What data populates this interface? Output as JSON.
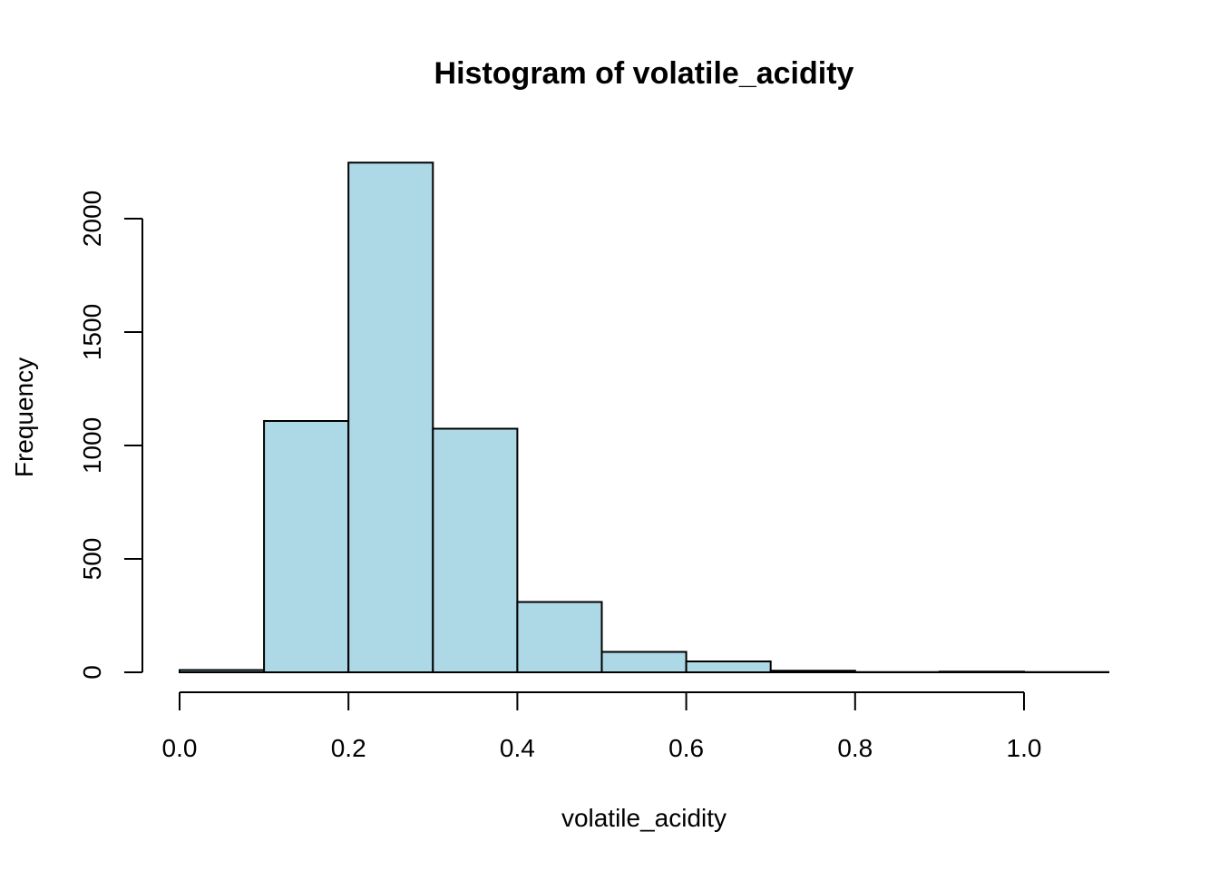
{
  "chart_data": {
    "type": "bar",
    "title": "Histogram of volatile_acidity",
    "xlabel": "volatile_acidity",
    "ylabel": "Frequency",
    "bins": [
      {
        "start": 0.0,
        "end": 0.1,
        "value": 10
      },
      {
        "start": 0.1,
        "end": 0.2,
        "value": 1108
      },
      {
        "start": 0.2,
        "end": 0.3,
        "value": 2247
      },
      {
        "start": 0.3,
        "end": 0.4,
        "value": 1074
      },
      {
        "start": 0.4,
        "end": 0.5,
        "value": 310
      },
      {
        "start": 0.5,
        "end": 0.6,
        "value": 90
      },
      {
        "start": 0.6,
        "end": 0.7,
        "value": 48
      },
      {
        "start": 0.7,
        "end": 0.8,
        "value": 7
      },
      {
        "start": 0.8,
        "end": 0.9,
        "value": 1
      },
      {
        "start": 0.9,
        "end": 1.0,
        "value": 3
      },
      {
        "start": 1.0,
        "end": 1.1,
        "value": 1
      }
    ],
    "x_ticks": [
      {
        "value": 0.0,
        "label": "0.0"
      },
      {
        "value": 0.2,
        "label": "0.2"
      },
      {
        "value": 0.4,
        "label": "0.4"
      },
      {
        "value": 0.6,
        "label": "0.6"
      },
      {
        "value": 0.8,
        "label": "0.8"
      },
      {
        "value": 1.0,
        "label": "1.0"
      }
    ],
    "y_ticks": [
      {
        "value": 0,
        "label": "0"
      },
      {
        "value": 500,
        "label": "500"
      },
      {
        "value": 1000,
        "label": "1000"
      },
      {
        "value": 1500,
        "label": "1500"
      },
      {
        "value": 2000,
        "label": "2000"
      }
    ],
    "bar_color": "#add8e6",
    "grid": false
  }
}
